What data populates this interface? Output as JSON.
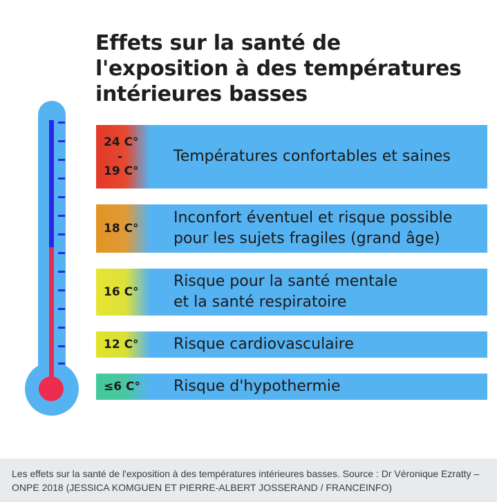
{
  "title_lines": [
    "Effets sur la santé de",
    "l'exposition à des températures",
    "intérieures basses"
  ],
  "levels": [
    {
      "temp_top": "24 C°",
      "temp_sep": "-",
      "temp_bottom": "19 C°",
      "lines": [
        "Températures confortables et saines"
      ],
      "color": "#e23a28"
    },
    {
      "temp": "18 C°",
      "lines": [
        "Inconfort éventuel et risque possible",
        "pour les sujets fragiles (grand âge)"
      ],
      "color": "#e39424"
    },
    {
      "temp": "16 C°",
      "lines": [
        "Risque pour la santé mentale",
        "et la santé respiratoire"
      ],
      "color": "#e8e431"
    },
    {
      "temp": "12 C°",
      "lines": [
        "Risque cardiovasculaire"
      ],
      "color": "#e3e229"
    },
    {
      "temp": "≤6 C°",
      "lines": [
        "Risque d'hypothermie"
      ],
      "color": "#44c999"
    }
  ],
  "caption": "Les effets sur la santé de l'exposition à des températures intérieures basses. Source : Dr Véronique Ezratty – ONPE 2018  (JESSICA KOMGUEN ET PIERRE-ALBERT JOSSERAND / FRANCEINFO)",
  "colors": {
    "bar_blue": "#56b3f2",
    "mercury_blue": "#2727e5",
    "mercury_red": "#e02f52"
  }
}
